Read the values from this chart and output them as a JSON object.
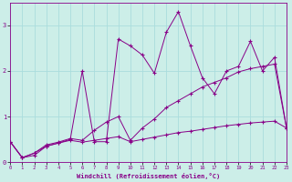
{
  "xlabel": "Windchill (Refroidissement éolien,°C)",
  "background_color": "#cceee8",
  "grid_color": "#aadddd",
  "line_color": "#880088",
  "x": [
    0,
    1,
    2,
    3,
    4,
    5,
    6,
    7,
    8,
    9,
    10,
    11,
    12,
    13,
    14,
    15,
    16,
    17,
    18,
    19,
    20,
    21,
    22,
    23
  ],
  "line1": [
    0.45,
    0.1,
    0.15,
    0.35,
    0.42,
    0.5,
    2.0,
    0.45,
    0.45,
    2.7,
    2.55,
    2.35,
    1.95,
    2.85,
    3.3,
    2.55,
    1.85,
    1.5,
    2.0,
    2.1,
    2.65,
    2.0,
    2.3,
    0.75
  ],
  "line2": [
    0.45,
    0.1,
    0.2,
    0.38,
    0.44,
    0.52,
    0.48,
    0.7,
    0.88,
    1.0,
    0.48,
    0.75,
    0.95,
    1.2,
    1.35,
    1.5,
    1.65,
    1.75,
    1.85,
    1.98,
    2.05,
    2.1,
    2.15,
    0.75
  ],
  "line3": [
    0.45,
    0.1,
    0.2,
    0.35,
    0.42,
    0.48,
    0.44,
    0.48,
    0.52,
    0.56,
    0.45,
    0.5,
    0.55,
    0.6,
    0.65,
    0.68,
    0.72,
    0.76,
    0.8,
    0.83,
    0.86,
    0.88,
    0.9,
    0.75
  ],
  "ylim": [
    0,
    3.5
  ],
  "xlim": [
    0,
    23
  ],
  "yticks": [
    0,
    1,
    2,
    3
  ],
  "xticks": [
    0,
    1,
    2,
    3,
    4,
    5,
    6,
    7,
    8,
    9,
    10,
    11,
    12,
    13,
    14,
    15,
    16,
    17,
    18,
    19,
    20,
    21,
    22,
    23
  ],
  "figwidth": 3.2,
  "figheight": 2.0,
  "dpi": 100
}
